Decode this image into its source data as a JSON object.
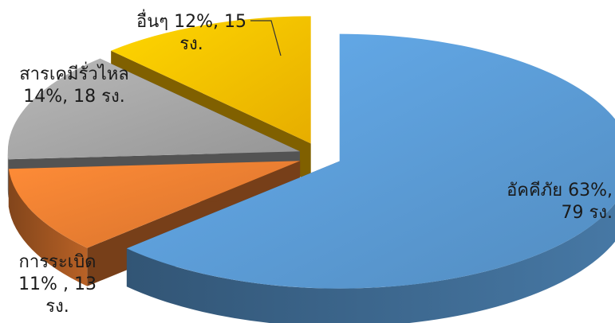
{
  "chart_data": {
    "type": "pie",
    "style": "3d-exploded",
    "title": "",
    "slices": [
      {
        "label": "อัคคีภัย",
        "percent": 63,
        "count": 79,
        "unit": "รง.",
        "color": "#5B9BD5",
        "text_lines": [
          "อัคคีภัย 63%,",
          "79 รง."
        ]
      },
      {
        "label": "การระเบิด",
        "percent": 11,
        "count": 13,
        "unit": "รง.",
        "color": "#ED7D31",
        "text_lines": [
          "การระเบิด",
          "11% , 13",
          "รง."
        ]
      },
      {
        "label": "สารเคมีรั่วไหล",
        "percent": 14,
        "count": 18,
        "unit": "รง.",
        "color": "#A5A5A5",
        "text_lines": [
          "สารเคมีรั่วไหล",
          "14%, 18 รง."
        ]
      },
      {
        "label": "อื่นๆ",
        "percent": 12,
        "count": 15,
        "unit": "รง.",
        "color": "#FFC000",
        "text_lines": [
          "อื่นๆ 12%, 15",
          "รง."
        ]
      }
    ],
    "legend": "none"
  }
}
